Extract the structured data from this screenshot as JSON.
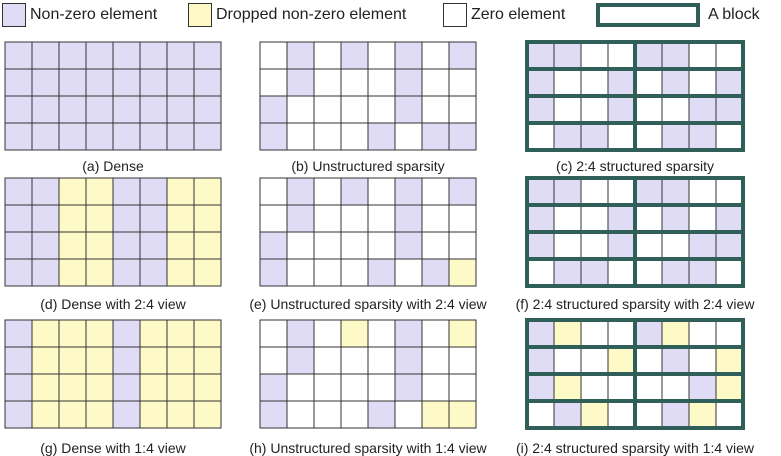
{
  "colors": {
    "nonzero": "#e0dcf5",
    "dropped": "#fdfac7",
    "zero": "#ffffff",
    "grid": "#333333",
    "block": "#2f5f58"
  },
  "legend": {
    "nonzero": "Non-zero element",
    "dropped": "Dropped non-zero element",
    "zero": "Zero element",
    "block": "A block"
  },
  "panels": [
    {
      "id": "a",
      "caption": "(a) Dense",
      "blocks": false,
      "grid": [
        "pppppppp",
        "pppppppp",
        "pppppppp",
        "pppppppp"
      ]
    },
    {
      "id": "b",
      "caption": "(b) Unstructured sparsity",
      "blocks": false,
      "grid": [
        "wpwpwpwp",
        "wpwwwpww",
        "pwwwwpww",
        "pwwwpwpp"
      ]
    },
    {
      "id": "c",
      "caption": "(c) 2:4 structured sparsity",
      "blocks": true,
      "grid": [
        "ppwwppww",
        "pwwpwpwp",
        "pwwpwwpp",
        "wppwwppw"
      ]
    },
    {
      "id": "d",
      "caption": "(d) Dense with 2:4 view",
      "blocks": false,
      "grid": [
        "ppyyppyy",
        "ppyyppyy",
        "ppyyppyy",
        "ppyyppyy"
      ]
    },
    {
      "id": "e",
      "caption": "(e) Unstructured sparsity with 2:4 view",
      "blocks": false,
      "grid": [
        "wpwpwpwp",
        "wpwwwpww",
        "pwwwwpww",
        "pwwwpwpy"
      ]
    },
    {
      "id": "f",
      "caption": "(f) 2:4 structured sparsity with 2:4 view",
      "blocks": true,
      "grid": [
        "ppwwppww",
        "pwwpwpwp",
        "pwwpwwpp",
        "wppwwppw"
      ]
    },
    {
      "id": "g",
      "caption": "(g) Dense with 1:4 view",
      "blocks": false,
      "grid": [
        "pyyypyyy",
        "pyyypyyy",
        "pyyypyyy",
        "pyyypyyy"
      ]
    },
    {
      "id": "h",
      "caption": "(h) Unstructured sparsity with 1:4 view",
      "blocks": false,
      "grid": [
        "wpwywpwy",
        "wpwwwpww",
        "pwwwwpww",
        "pwwwpwyy"
      ]
    },
    {
      "id": "i",
      "caption": "(i) 2:4 structured sparsity with 1:4 view",
      "blocks": true,
      "grid": [
        "pywwpyww",
        "pwwywpwy",
        "pywwwwpy",
        "wpywwpyw"
      ]
    }
  ]
}
